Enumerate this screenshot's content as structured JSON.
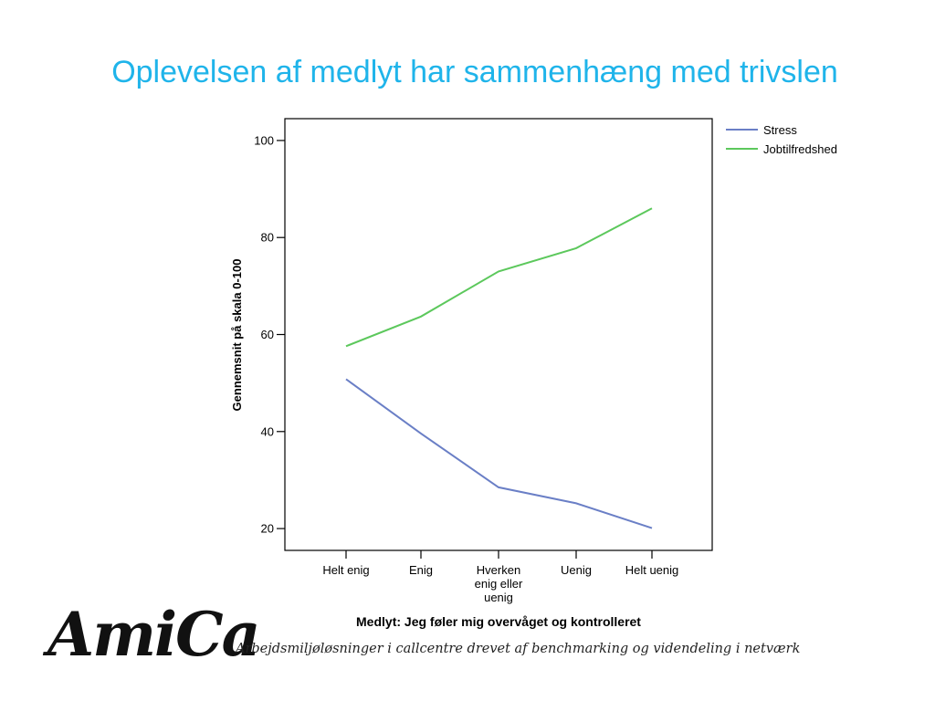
{
  "slide": {
    "title": "Oplevelsen af medlyt har sammenhæng med trivslen",
    "logo_text": "AmiCa",
    "tagline": "Arbejdsmiljøløsninger i callcentre drevet af benchmarking og videndeling i netværk"
  },
  "colors": {
    "title": "#1fb4ea",
    "stress": "#6a7fc6",
    "jobtilfredshed": "#5cc85c"
  },
  "chart_data": {
    "type": "line",
    "categories": [
      [
        "Helt enig"
      ],
      [
        "Enig"
      ],
      [
        "Hverken",
        "enig eller",
        "uenig"
      ],
      [
        "Uenig"
      ],
      [
        "Helt uenig"
      ]
    ],
    "series": [
      {
        "name": "Stress",
        "color": "#6a7fc6",
        "values": [
          50.8,
          39.6,
          28.5,
          25.2,
          20.1
        ]
      },
      {
        "name": "Jobtilfredshed",
        "color": "#5cc85c",
        "values": [
          57.6,
          63.7,
          73.0,
          77.8,
          86.0
        ]
      }
    ],
    "xlabel": "Medlyt: Jeg føler mig overvåget og kontrolleret",
    "ylabel": "Gennemsnit på skala 0-100",
    "yticks": [
      20,
      40,
      60,
      80,
      100
    ],
    "ylim": [
      15.5,
      104.5
    ],
    "grid": false,
    "legend": "top-right outside plot"
  }
}
